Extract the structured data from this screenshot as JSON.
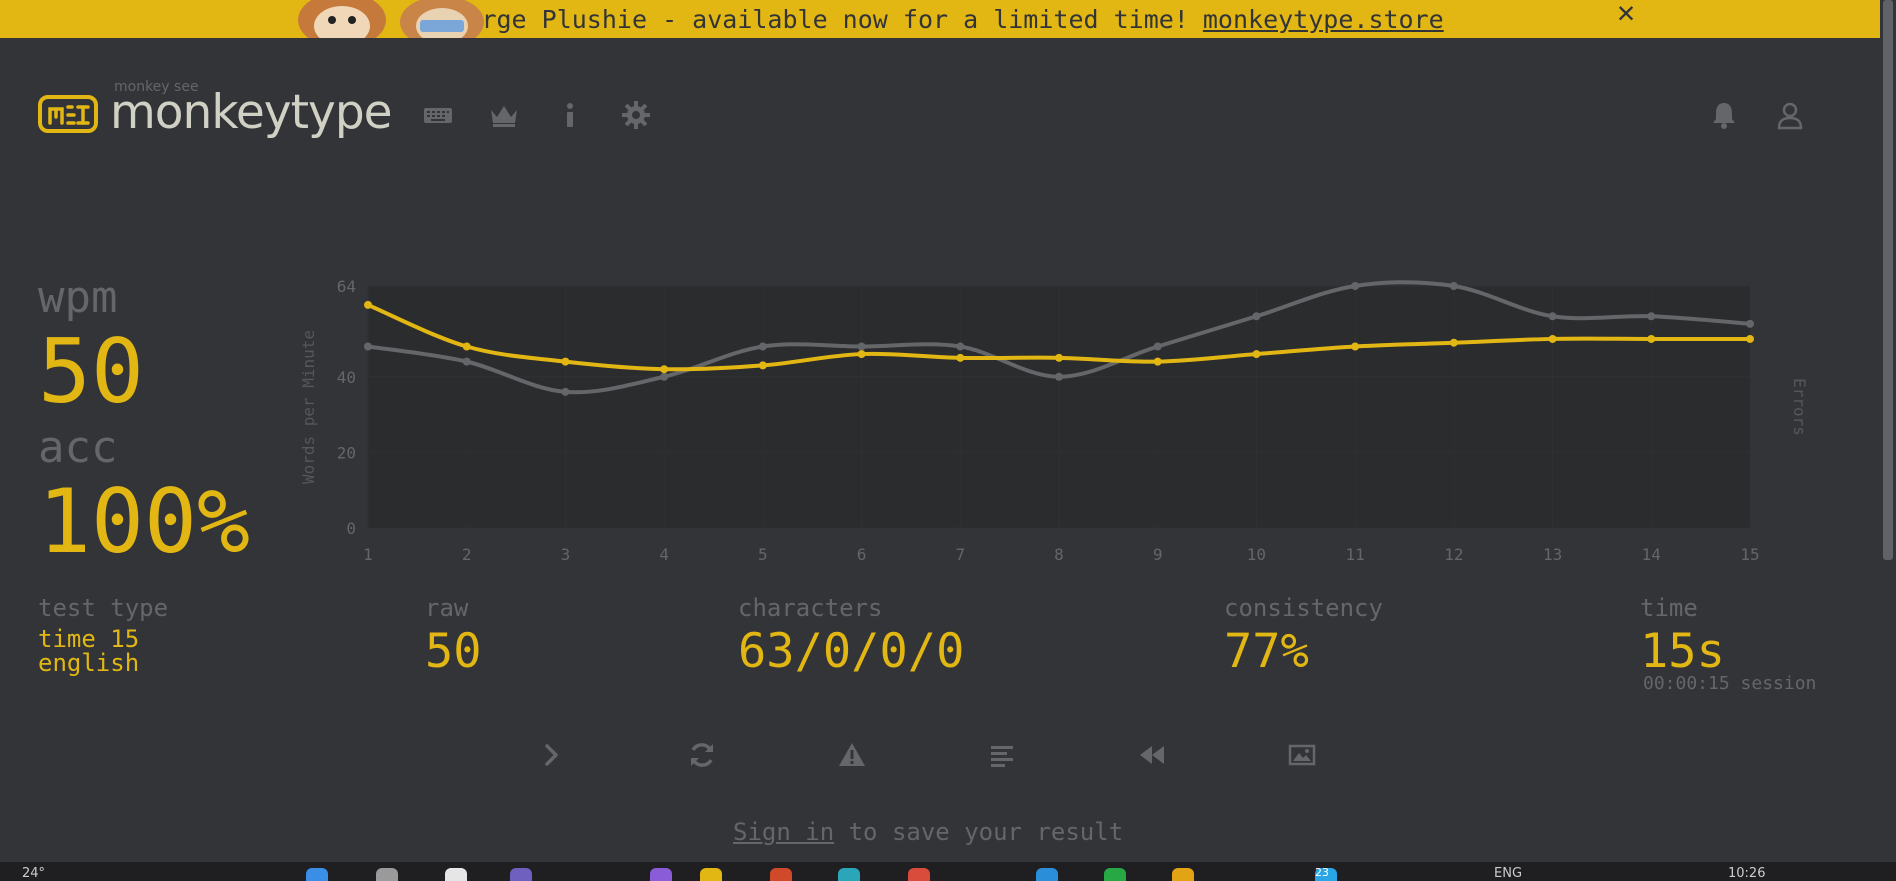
{
  "banner": {
    "text": "George Plushie - available now for a limited time!",
    "link": "monkeytype.store",
    "close": "✕"
  },
  "header": {
    "logo_small": "monkey see",
    "logo_text": "monkeytype",
    "icons": [
      "keyboard-icon",
      "crown-icon",
      "info-icon",
      "gear-icon",
      "bell-icon",
      "user-icon"
    ]
  },
  "result": {
    "wpm_label": "wpm",
    "wpm_value": "50",
    "acc_label": "acc",
    "acc_value": "100%"
  },
  "stats": {
    "test_type_label": "test type",
    "test_type_value_1": "time 15",
    "test_type_value_2": "english",
    "raw_label": "raw",
    "raw_value": "50",
    "characters_label": "characters",
    "characters_value": "63/0/0/0",
    "consistency_label": "consistency",
    "consistency_value": "77%",
    "time_label": "time",
    "time_value": "15s",
    "session": "00:00:15 session"
  },
  "actions": [
    "next-test-icon",
    "restart-icon",
    "report-icon",
    "words-history-icon",
    "replay-icon",
    "screenshot-icon"
  ],
  "signin": {
    "link": "Sign in",
    "text": " to save your result"
  },
  "taskbar": {
    "temperature": "24°",
    "lang": "ENG",
    "clock": "10:26",
    "badge": "23"
  },
  "colors": {
    "background": "#323437",
    "main": "#e2b714",
    "sub": "#646669",
    "text": "#d1d0c5",
    "raw_line": "#646669"
  },
  "chart_data": {
    "type": "line",
    "x": [
      1,
      2,
      3,
      4,
      5,
      6,
      7,
      8,
      9,
      10,
      11,
      12,
      13,
      14,
      15
    ],
    "y_ticks": [
      0,
      20,
      40,
      64
    ],
    "ylim": [
      0,
      64
    ],
    "ylabel": "Words per Minute",
    "y2label": "Errors",
    "series": [
      {
        "role": "wpm",
        "color": "#e2b714",
        "values": [
          59,
          48,
          44,
          42,
          43,
          46,
          45,
          45,
          44,
          46,
          48,
          49,
          50,
          50,
          50
        ]
      },
      {
        "role": "raw",
        "color": "#646669",
        "values": [
          48,
          44,
          36,
          40,
          48,
          48,
          48,
          40,
          48,
          56,
          64,
          64,
          56,
          56,
          54
        ]
      }
    ]
  }
}
